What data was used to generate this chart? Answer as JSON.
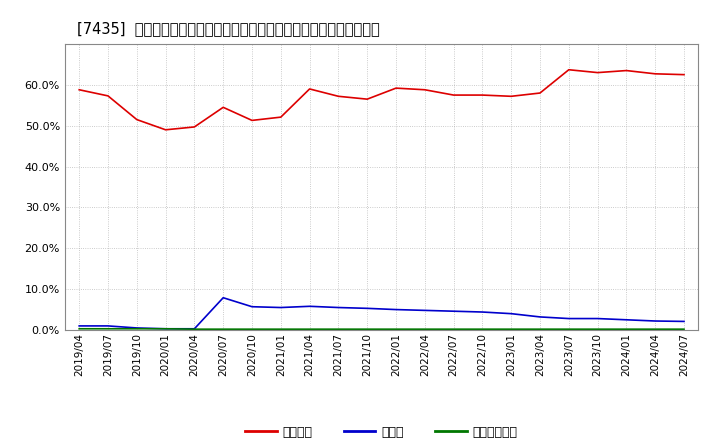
{
  "title": "[7435]  自己資本、のれん、繰延税金資産の総資産に対する比率の推移",
  "background_color": "#ffffff",
  "plot_bg_color": "#ffffff",
  "grid_color": "#aaaaaa",
  "ylim": [
    0.0,
    0.7
  ],
  "yticks": [
    0.0,
    0.1,
    0.2,
    0.3,
    0.4,
    0.5,
    0.6
  ],
  "series": {
    "自己資本": {
      "color": "#dd0000",
      "data": [
        [
          "2019/04",
          0.588
        ],
        [
          "2019/07",
          0.573
        ],
        [
          "2019/10",
          0.515
        ],
        [
          "2020/01",
          0.49
        ],
        [
          "2020/04",
          0.497
        ],
        [
          "2020/07",
          0.545
        ],
        [
          "2020/10",
          0.513
        ],
        [
          "2021/01",
          0.521
        ],
        [
          "2021/04",
          0.59
        ],
        [
          "2021/07",
          0.572
        ],
        [
          "2021/10",
          0.565
        ],
        [
          "2022/01",
          0.592
        ],
        [
          "2022/04",
          0.588
        ],
        [
          "2022/07",
          0.575
        ],
        [
          "2022/10",
          0.575
        ],
        [
          "2023/01",
          0.572
        ],
        [
          "2023/04",
          0.58
        ],
        [
          "2023/07",
          0.637
        ],
        [
          "2023/10",
          0.63
        ],
        [
          "2024/01",
          0.635
        ],
        [
          "2024/04",
          0.627
        ],
        [
          "2024/07",
          0.625
        ]
      ]
    },
    "のれん": {
      "color": "#0000cc",
      "data": [
        [
          "2019/04",
          0.01
        ],
        [
          "2019/07",
          0.01
        ],
        [
          "2019/10",
          0.005
        ],
        [
          "2020/01",
          0.003
        ],
        [
          "2020/04",
          0.003
        ],
        [
          "2020/07",
          0.079
        ],
        [
          "2020/10",
          0.057
        ],
        [
          "2021/01",
          0.055
        ],
        [
          "2021/04",
          0.058
        ],
        [
          "2021/07",
          0.055
        ],
        [
          "2021/10",
          0.053
        ],
        [
          "2022/01",
          0.05
        ],
        [
          "2022/04",
          0.048
        ],
        [
          "2022/07",
          0.046
        ],
        [
          "2022/10",
          0.044
        ],
        [
          "2023/01",
          0.04
        ],
        [
          "2023/04",
          0.032
        ],
        [
          "2023/07",
          0.028
        ],
        [
          "2023/10",
          0.028
        ],
        [
          "2024/01",
          0.025
        ],
        [
          "2024/04",
          0.022
        ],
        [
          "2024/07",
          0.021
        ]
      ]
    },
    "繰延税金資産": {
      "color": "#007700",
      "data": [
        [
          "2019/04",
          0.003
        ],
        [
          "2019/07",
          0.003
        ],
        [
          "2019/10",
          0.003
        ],
        [
          "2020/01",
          0.003
        ],
        [
          "2020/04",
          0.002
        ],
        [
          "2020/07",
          0.002
        ],
        [
          "2020/10",
          0.002
        ],
        [
          "2021/01",
          0.002
        ],
        [
          "2021/04",
          0.002
        ],
        [
          "2021/07",
          0.002
        ],
        [
          "2021/10",
          0.002
        ],
        [
          "2022/01",
          0.002
        ],
        [
          "2022/04",
          0.002
        ],
        [
          "2022/07",
          0.002
        ],
        [
          "2022/10",
          0.002
        ],
        [
          "2023/01",
          0.002
        ],
        [
          "2023/04",
          0.002
        ],
        [
          "2023/07",
          0.002
        ],
        [
          "2023/10",
          0.002
        ],
        [
          "2024/01",
          0.002
        ],
        [
          "2024/04",
          0.002
        ],
        [
          "2024/07",
          0.002
        ]
      ]
    }
  },
  "legend_labels": [
    "自己資本",
    "のれん",
    "繰延税金資産"
  ],
  "legend_colors": [
    "#dd0000",
    "#0000cc",
    "#007700"
  ],
  "xtick_labels": [
    "2019/04",
    "2019/07",
    "2019/10",
    "2020/01",
    "2020/04",
    "2020/07",
    "2020/10",
    "2021/01",
    "2021/04",
    "2021/07",
    "2021/10",
    "2022/01",
    "2022/04",
    "2022/07",
    "2022/10",
    "2023/01",
    "2023/04",
    "2023/07",
    "2023/10",
    "2024/01",
    "2024/04",
    "2024/07"
  ]
}
